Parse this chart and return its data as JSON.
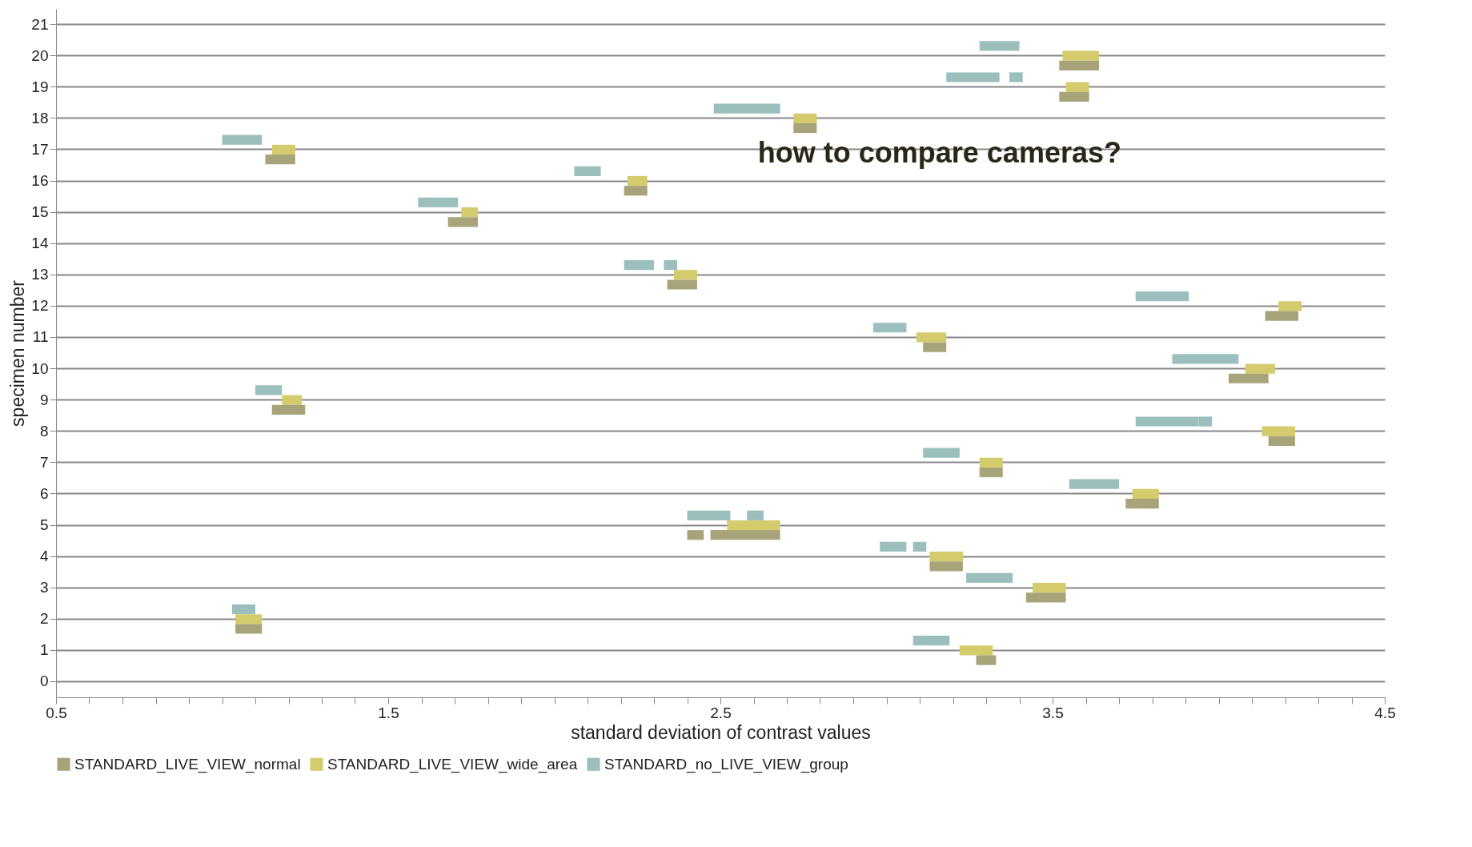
{
  "chart_data": {
    "type": "bar",
    "orientation": "horizontal",
    "xlabel": "standard deviation of contrast values",
    "ylabel": "specimen number",
    "annotations": [
      "how to compare cameras?"
    ],
    "categories": [
      "21",
      "20",
      "19",
      "18",
      "17",
      "16",
      "15",
      "14",
      "13",
      "12",
      "11",
      "10",
      "9",
      "8",
      "7",
      "6",
      "5",
      "4",
      "3",
      "2",
      "1",
      "0"
    ],
    "series": [
      {
        "name": "STANDARD_no_LIVE_VIEW_group",
        "color": "#9bbfbd",
        "base": [
          null,
          3.28,
          3.18,
          2.48,
          1.0,
          2.06,
          1.59,
          null,
          2.21,
          3.75,
          2.96,
          3.86,
          1.1,
          3.75,
          3.11,
          3.55,
          2.4,
          2.98,
          3.24,
          1.03,
          3.08,
          null
        ],
        "values": [
          null,
          0.12,
          0.16,
          0.2,
          0.12,
          0.08,
          0.12,
          null,
          0.09,
          0.16,
          0.1,
          0.2,
          0.08,
          0.19,
          0.11,
          0.15,
          0.13,
          0.08,
          0.14,
          0.07,
          0.11,
          null
        ]
      },
      {
        "color": "#9bbfbd",
        "base": [
          null,
          null,
          3.37,
          null,
          null,
          null,
          null,
          null,
          2.33,
          null,
          null,
          null,
          null,
          3.94,
          null,
          null,
          2.58,
          3.08,
          null,
          null,
          null,
          null
        ],
        "values": [
          null,
          null,
          0.04,
          null,
          null,
          null,
          null,
          null,
          0.04,
          null,
          null,
          null,
          null,
          0.04,
          null,
          null,
          0.05,
          0.04,
          null,
          null,
          null,
          null
        ]
      },
      {
        "name": "STANDARD_LIVE_VIEW_wide_area",
        "color": "#d4cc6c",
        "base": [
          null,
          3.53,
          3.54,
          2.72,
          1.15,
          2.22,
          1.72,
          null,
          2.36,
          4.18,
          3.09,
          4.08,
          1.18,
          4.13,
          3.28,
          3.74,
          2.52,
          3.13,
          3.44,
          1.04,
          3.22,
          null
        ],
        "values": [
          null,
          0.11,
          0.07,
          0.07,
          0.07,
          0.06,
          0.05,
          null,
          0.07,
          0.07,
          0.09,
          0.09,
          0.06,
          0.1,
          0.07,
          0.08,
          0.16,
          0.1,
          0.1,
          0.08,
          0.1,
          null
        ]
      },
      {
        "name": "STANDARD_LIVE_VIEW_normal",
        "color": "#a8a47a",
        "base": [
          null,
          3.52,
          3.52,
          2.72,
          1.13,
          2.21,
          1.68,
          null,
          2.34,
          4.14,
          3.11,
          4.03,
          1.15,
          4.15,
          3.28,
          3.72,
          2.47,
          3.13,
          3.42,
          1.04,
          3.27,
          null
        ],
        "values": [
          null,
          0.12,
          0.09,
          0.07,
          0.09,
          0.07,
          0.09,
          null,
          0.09,
          0.1,
          0.07,
          0.12,
          0.1,
          0.08,
          0.07,
          0.1,
          0.21,
          0.1,
          0.12,
          0.08,
          0.06,
          null
        ]
      },
      {
        "color": "#a8a47a",
        "base": [
          null,
          null,
          null,
          null,
          null,
          null,
          null,
          null,
          null,
          null,
          null,
          null,
          null,
          null,
          null,
          null,
          2.4,
          null,
          null,
          null,
          null,
          null
        ],
        "values": [
          null,
          null,
          null,
          null,
          null,
          null,
          null,
          null,
          null,
          null,
          null,
          null,
          null,
          null,
          null,
          null,
          0.05,
          null,
          null,
          null,
          null,
          null
        ]
      }
    ],
    "xlim": [
      0.5,
      4.5
    ],
    "xticks": [
      0.5,
      {
        "value": 0.6,
        "label": null
      },
      {
        "value": 0.7,
        "label": null
      },
      {
        "value": 0.8,
        "label": null
      },
      {
        "value": 0.9,
        "label": null
      },
      {
        "value": 1.0,
        "label": null
      },
      {
        "value": 1.1,
        "label": null
      },
      {
        "value": 1.2,
        "label": null
      },
      {
        "value": 1.3,
        "label": null
      },
      {
        "value": 1.4,
        "label": null
      },
      1.5,
      {
        "value": 1.6,
        "label": null
      },
      {
        "value": 1.7,
        "label": null
      },
      {
        "value": 1.8,
        "label": null
      },
      {
        "value": 1.9,
        "label": null
      },
      {
        "value": 2.0,
        "label": null
      },
      {
        "value": 2.1,
        "label": null
      },
      {
        "value": 2.2,
        "label": null
      },
      {
        "value": 2.3,
        "label": null
      },
      {
        "value": 2.4,
        "label": null
      },
      2.5,
      {
        "value": 2.6,
        "label": null
      },
      {
        "value": 2.7,
        "label": null
      },
      {
        "value": 2.8,
        "label": null
      },
      {
        "value": 2.9,
        "label": null
      },
      {
        "value": 3.0,
        "label": null
      },
      {
        "value": 3.1,
        "label": null
      },
      {
        "value": 3.2,
        "label": null
      },
      {
        "value": 3.3,
        "label": null
      },
      {
        "value": 3.4,
        "label": null
      },
      3.5,
      {
        "value": 3.6,
        "label": null
      },
      {
        "value": 3.7,
        "label": null
      },
      {
        "value": 3.8,
        "label": null
      },
      {
        "value": 3.9,
        "label": null
      },
      {
        "value": 4.0,
        "label": null
      },
      {
        "value": 4.1,
        "label": null
      },
      {
        "value": 4.2,
        "label": null
      },
      {
        "value": 4.3,
        "label": null
      },
      {
        "value": 4.4,
        "label": null
      },
      4.5
    ],
    "grid": "y",
    "legend": "bottom"
  }
}
